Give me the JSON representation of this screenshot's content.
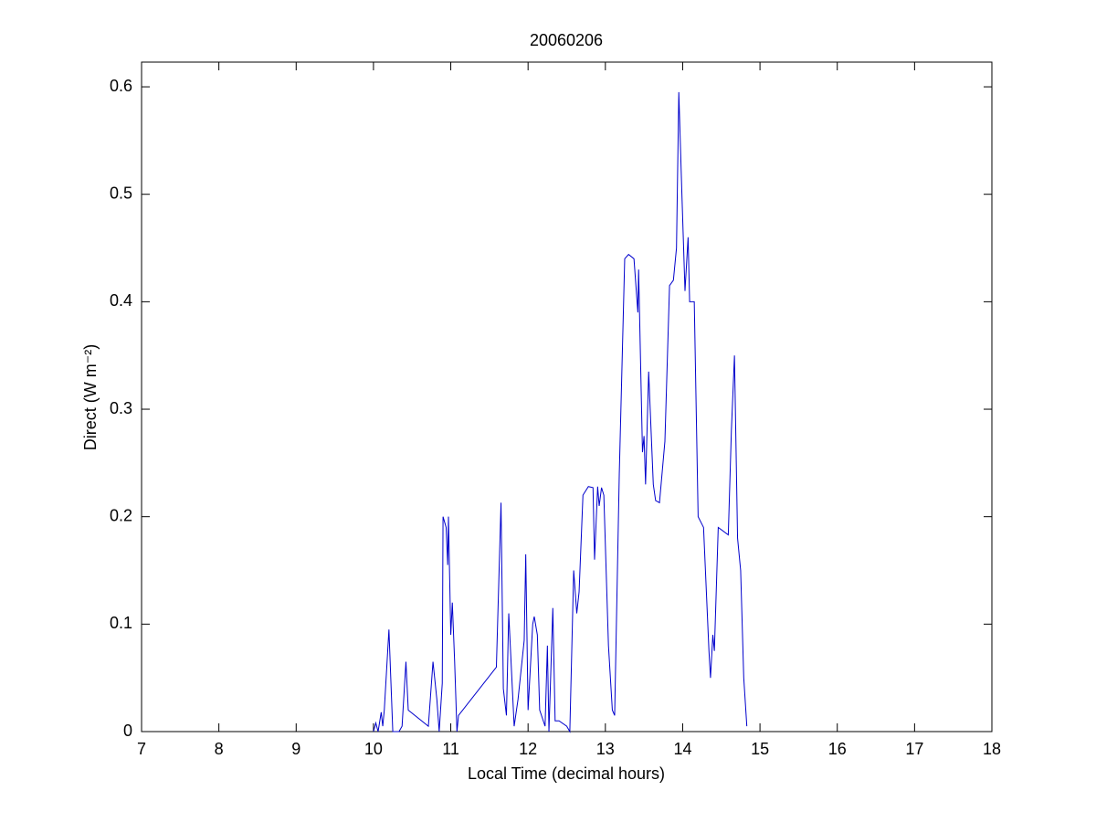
{
  "chart_data": {
    "type": "line",
    "title": "20060206",
    "xlabel": "Local Time (decimal hours)",
    "ylabel": "Direct (W m⁻²)",
    "xlim": [
      7,
      18
    ],
    "xticks": [
      7,
      8,
      9,
      10,
      11,
      12,
      13,
      14,
      15,
      16,
      17,
      18
    ],
    "ylim": [
      0,
      0.623
    ],
    "yticks": [
      0,
      0.1,
      0.2,
      0.3,
      0.4,
      0.5,
      0.6
    ],
    "grid": false,
    "series": [
      {
        "color": "#0000cc",
        "x": [
          10.0,
          10.03,
          10.06,
          10.1,
          10.12,
          10.14,
          10.2,
          10.25,
          10.33,
          10.37,
          10.42,
          10.45,
          10.71,
          10.77,
          10.82,
          10.85,
          10.89,
          10.9,
          10.94,
          10.96,
          10.97,
          11.0,
          11.02,
          11.05,
          11.08,
          11.1,
          11.59,
          11.65,
          11.68,
          11.72,
          11.75,
          11.82,
          11.87,
          11.95,
          11.97,
          12.0,
          12.06,
          12.08,
          12.12,
          12.15,
          12.22,
          12.25,
          12.27,
          12.32,
          12.35,
          12.4,
          12.5,
          12.54,
          12.59,
          12.63,
          12.66,
          12.71,
          12.78,
          12.84,
          12.86,
          12.9,
          12.92,
          12.95,
          12.98,
          13.04,
          13.09,
          13.12,
          13.18,
          13.25,
          13.3,
          13.37,
          13.42,
          13.43,
          13.48,
          13.5,
          13.52,
          13.56,
          13.62,
          13.65,
          13.7,
          13.77,
          13.83,
          13.88,
          13.92,
          13.95,
          13.99,
          14.03,
          14.07,
          14.09,
          14.15,
          14.2,
          14.27,
          14.34,
          14.36,
          14.39,
          14.41,
          14.46,
          14.59,
          14.63,
          14.67,
          14.71,
          14.75,
          14.79,
          14.83
        ],
        "values": [
          0,
          0.008,
          0,
          0.018,
          0.005,
          0.02,
          0.095,
          0,
          0,
          0.005,
          0.065,
          0.02,
          0.005,
          0.065,
          0.03,
          0,
          0.045,
          0.2,
          0.19,
          0.155,
          0.2,
          0.09,
          0.12,
          0.065,
          0,
          0.015,
          0.06,
          0.213,
          0.04,
          0.015,
          0.11,
          0.005,
          0.03,
          0.085,
          0.165,
          0.02,
          0.1,
          0.107,
          0.09,
          0.02,
          0.005,
          0.08,
          0,
          0.115,
          0.01,
          0.01,
          0.005,
          0,
          0.15,
          0.11,
          0.13,
          0.22,
          0.228,
          0.227,
          0.16,
          0.228,
          0.21,
          0.227,
          0.22,
          0.08,
          0.02,
          0.015,
          0.24,
          0.44,
          0.444,
          0.44,
          0.39,
          0.43,
          0.26,
          0.275,
          0.23,
          0.335,
          0.23,
          0.215,
          0.213,
          0.27,
          0.415,
          0.42,
          0.45,
          0.595,
          0.5,
          0.41,
          0.46,
          0.4,
          0.4,
          0.2,
          0.19,
          0.075,
          0.05,
          0.09,
          0.075,
          0.19,
          0.183,
          0.28,
          0.35,
          0.18,
          0.15,
          0.05,
          0.005
        ]
      }
    ]
  }
}
